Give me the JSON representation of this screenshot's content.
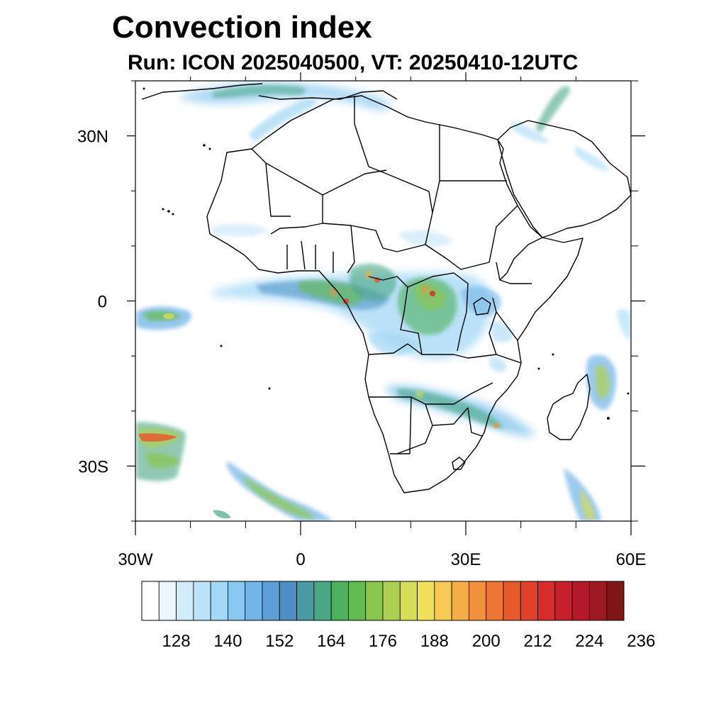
{
  "title": "Convection index",
  "subtitle": "Run: ICON 2025040500,  VT: 20250410-12UTC",
  "map": {
    "region": "Africa",
    "lon_range": [
      -30,
      60
    ],
    "lat_range": [
      -40,
      40
    ],
    "lat_ticks": [
      {
        "value": 30,
        "label": "30N"
      },
      {
        "value": 0,
        "label": "0"
      },
      {
        "value": -30,
        "label": "30S"
      }
    ],
    "lon_ticks": [
      {
        "value": -30,
        "label": "30W"
      },
      {
        "value": 0,
        "label": "0"
      },
      {
        "value": 30,
        "label": "30E"
      },
      {
        "value": 60,
        "label": "60E"
      }
    ],
    "minor_lat_ticks": [
      40,
      20,
      10,
      -10,
      -20,
      -40
    ],
    "minor_lon_ticks": [
      -20,
      -10,
      10,
      20,
      40,
      50
    ]
  },
  "colorbar": {
    "colors": [
      "#ffffff",
      "#eaf6fd",
      "#d3ecfa",
      "#bde3f8",
      "#a3d8f5",
      "#8ac9ef",
      "#72b5e6",
      "#5c9fd8",
      "#4e90c6",
      "#4a9aa4",
      "#4aa683",
      "#4cb05e",
      "#62bb4e",
      "#8ac64e",
      "#aed052",
      "#d6dc55",
      "#f1e15a",
      "#f7c955",
      "#f5ad47",
      "#f2913c",
      "#ee7634",
      "#e85a2e",
      "#e1402b",
      "#d82c2c",
      "#c71f2c",
      "#b3192b",
      "#9e1a23",
      "#7f1717"
    ],
    "labels": [
      "128",
      "140",
      "152",
      "164",
      "176",
      "188",
      "200",
      "212",
      "224",
      "236"
    ],
    "label_values": [
      128,
      140,
      152,
      164,
      176,
      188,
      200,
      212,
      224,
      236
    ]
  }
}
